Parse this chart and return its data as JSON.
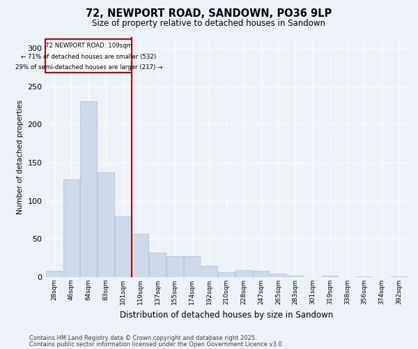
{
  "title": "72, NEWPORT ROAD, SANDOWN, PO36 9LP",
  "subtitle": "Size of property relative to detached houses in Sandown",
  "xlabel": "Distribution of detached houses by size in Sandown",
  "ylabel": "Number of detached properties",
  "footer_line1": "Contains HM Land Registry data © Crown copyright and database right 2025.",
  "footer_line2": "Contains public sector information licensed under the Open Government Licence v3.0.",
  "annotation_line1": "72 NEWPORT ROAD: 109sqm",
  "annotation_line2": "← 71% of detached houses are smaller (532)",
  "annotation_line3": "29% of semi-detached houses are larger (217) →",
  "bar_labels": [
    "28sqm",
    "46sqm",
    "64sqm",
    "83sqm",
    "101sqm",
    "119sqm",
    "137sqm",
    "155sqm",
    "174sqm",
    "192sqm",
    "210sqm",
    "228sqm",
    "247sqm",
    "265sqm",
    "283sqm",
    "301sqm",
    "319sqm",
    "338sqm",
    "356sqm",
    "374sqm",
    "392sqm"
  ],
  "bar_values": [
    8,
    128,
    230,
    137,
    80,
    57,
    32,
    27,
    27,
    15,
    6,
    9,
    8,
    5,
    2,
    0,
    2,
    0,
    1,
    0,
    1
  ],
  "bar_color": "#ccdaeb",
  "bar_edgecolor": "#aabdd4",
  "vline_x_index": 4.5,
  "vline_color": "#cc0000",
  "box_color": "#cc0000",
  "bg_color": "#edf2f9",
  "ylim": [
    0,
    315
  ],
  "yticks": [
    0,
    50,
    100,
    150,
    200,
    250,
    300
  ]
}
